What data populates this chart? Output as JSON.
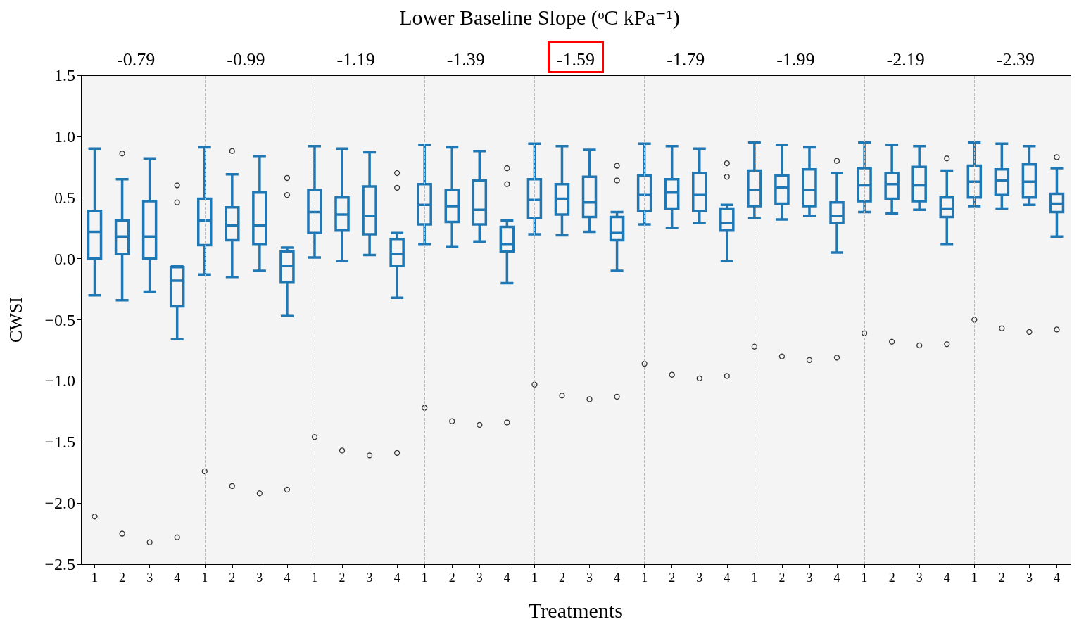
{
  "chart_data": {
    "type": "box",
    "title": "Lower Baseline Slope (ᵒC kPa⁻¹)",
    "xlabel": "Treatments",
    "ylabel": "CWSI",
    "categories": [
      "1",
      "2",
      "3",
      "4",
      "1",
      "2",
      "3",
      "4",
      "1",
      "2",
      "3",
      "4",
      "1",
      "2",
      "3",
      "4",
      "1",
      "2",
      "3",
      "4",
      "1",
      "2",
      "3",
      "4",
      "1",
      "2",
      "3",
      "4",
      "1",
      "2",
      "3",
      "4",
      "1",
      "2",
      "3",
      "4"
    ],
    "annotations": [
      "-0.79",
      "-0.99",
      "-1.19",
      "-1.39",
      "-1.59",
      "-1.79",
      "-1.99",
      "-2.19",
      "-2.39"
    ],
    "series": [
      {
        "color": "#1f77b4",
        "boxes": [
          {
            "low": -0.3,
            "q1": 0.0,
            "median": 0.22,
            "q3": 0.39,
            "high": 0.9,
            "outliers": [
              -2.11
            ]
          },
          {
            "low": -0.34,
            "q1": 0.04,
            "median": 0.18,
            "q3": 0.31,
            "high": 0.65,
            "outliers": [
              0.86,
              -2.25
            ]
          },
          {
            "low": -0.27,
            "q1": 0.0,
            "median": 0.18,
            "q3": 0.47,
            "high": 0.82,
            "outliers": [
              -2.32
            ]
          },
          {
            "low": -0.66,
            "q1": -0.39,
            "median": -0.18,
            "q3": -0.07,
            "high": -0.06,
            "outliers": [
              0.6,
              0.46,
              -2.28
            ]
          },
          {
            "low": -0.13,
            "q1": 0.11,
            "median": 0.31,
            "q3": 0.49,
            "high": 0.91,
            "outliers": [
              -1.74
            ]
          },
          {
            "low": -0.15,
            "q1": 0.15,
            "median": 0.27,
            "q3": 0.42,
            "high": 0.69,
            "outliers": [
              0.88,
              -1.86
            ]
          },
          {
            "low": -0.1,
            "q1": 0.12,
            "median": 0.27,
            "q3": 0.54,
            "high": 0.84,
            "outliers": [
              -1.92
            ]
          },
          {
            "low": -0.47,
            "q1": -0.19,
            "median": -0.06,
            "q3": 0.06,
            "high": 0.09,
            "outliers": [
              0.66,
              0.52,
              -1.89
            ]
          },
          {
            "low": 0.01,
            "q1": 0.21,
            "median": 0.38,
            "q3": 0.56,
            "high": 0.92,
            "outliers": [
              -1.46
            ]
          },
          {
            "low": -0.02,
            "q1": 0.23,
            "median": 0.36,
            "q3": 0.5,
            "high": 0.9,
            "outliers": [
              -1.57
            ]
          },
          {
            "low": 0.03,
            "q1": 0.2,
            "median": 0.35,
            "q3": 0.59,
            "high": 0.87,
            "outliers": [
              -1.61
            ]
          },
          {
            "low": -0.32,
            "q1": -0.06,
            "median": 0.04,
            "q3": 0.16,
            "high": 0.21,
            "outliers": [
              0.7,
              0.58,
              -1.59
            ]
          },
          {
            "low": 0.12,
            "q1": 0.28,
            "median": 0.44,
            "q3": 0.61,
            "high": 0.93,
            "outliers": [
              -1.22
            ]
          },
          {
            "low": 0.1,
            "q1": 0.3,
            "median": 0.43,
            "q3": 0.56,
            "high": 0.91,
            "outliers": [
              -1.33
            ]
          },
          {
            "low": 0.14,
            "q1": 0.28,
            "median": 0.4,
            "q3": 0.64,
            "high": 0.88,
            "outliers": [
              -1.36
            ]
          },
          {
            "low": -0.2,
            "q1": 0.06,
            "median": 0.12,
            "q3": 0.26,
            "high": 0.31,
            "outliers": [
              0.74,
              0.61,
              -1.34
            ]
          },
          {
            "low": 0.2,
            "q1": 0.33,
            "median": 0.48,
            "q3": 0.65,
            "high": 0.94,
            "outliers": [
              -1.03
            ]
          },
          {
            "low": 0.19,
            "q1": 0.36,
            "median": 0.49,
            "q3": 0.61,
            "high": 0.92,
            "outliers": [
              -1.12
            ]
          },
          {
            "low": 0.22,
            "q1": 0.34,
            "median": 0.46,
            "q3": 0.67,
            "high": 0.89,
            "outliers": [
              -1.15
            ]
          },
          {
            "low": -0.1,
            "q1": 0.15,
            "median": 0.21,
            "q3": 0.34,
            "high": 0.38,
            "outliers": [
              0.76,
              0.64,
              -1.13
            ]
          },
          {
            "low": 0.28,
            "q1": 0.39,
            "median": 0.52,
            "q3": 0.68,
            "high": 0.94,
            "outliers": [
              -0.86
            ]
          },
          {
            "low": 0.25,
            "q1": 0.41,
            "median": 0.54,
            "q3": 0.65,
            "high": 0.92,
            "outliers": [
              -0.95
            ]
          },
          {
            "low": 0.29,
            "q1": 0.39,
            "median": 0.52,
            "q3": 0.7,
            "high": 0.9,
            "outliers": [
              -0.98
            ]
          },
          {
            "low": -0.02,
            "q1": 0.23,
            "median": 0.29,
            "q3": 0.41,
            "high": 0.44,
            "outliers": [
              0.78,
              0.67,
              -0.96
            ]
          },
          {
            "low": 0.33,
            "q1": 0.43,
            "median": 0.56,
            "q3": 0.72,
            "high": 0.95,
            "outliers": [
              -0.72
            ]
          },
          {
            "low": 0.32,
            "q1": 0.45,
            "median": 0.58,
            "q3": 0.68,
            "high": 0.93,
            "outliers": [
              -0.8
            ]
          },
          {
            "low": 0.35,
            "q1": 0.43,
            "median": 0.56,
            "q3": 0.73,
            "high": 0.91,
            "outliers": [
              -0.83
            ]
          },
          {
            "low": 0.05,
            "q1": 0.29,
            "median": 0.35,
            "q3": 0.46,
            "high": 0.7,
            "outliers": [
              0.8,
              -0.81
            ]
          },
          {
            "low": 0.38,
            "q1": 0.47,
            "median": 0.6,
            "q3": 0.74,
            "high": 0.95,
            "outliers": [
              -0.61
            ]
          },
          {
            "low": 0.37,
            "q1": 0.49,
            "median": 0.61,
            "q3": 0.7,
            "high": 0.93,
            "outliers": [
              -0.68
            ]
          },
          {
            "low": 0.4,
            "q1": 0.47,
            "median": 0.6,
            "q3": 0.75,
            "high": 0.92,
            "outliers": [
              -0.71
            ]
          },
          {
            "low": 0.12,
            "q1": 0.34,
            "median": 0.41,
            "q3": 0.5,
            "high": 0.72,
            "outliers": [
              0.82,
              -0.7
            ]
          },
          {
            "low": 0.43,
            "q1": 0.5,
            "median": 0.63,
            "q3": 0.76,
            "high": 0.95,
            "outliers": [
              -0.5
            ]
          },
          {
            "low": 0.41,
            "q1": 0.52,
            "median": 0.64,
            "q3": 0.73,
            "high": 0.94,
            "outliers": [
              -0.57
            ]
          },
          {
            "low": 0.44,
            "q1": 0.5,
            "median": 0.63,
            "q3": 0.77,
            "high": 0.92,
            "outliers": [
              -0.6
            ]
          },
          {
            "low": 0.18,
            "q1": 0.38,
            "median": 0.45,
            "q3": 0.53,
            "high": 0.74,
            "outliers": [
              0.83,
              -0.58
            ]
          }
        ]
      }
    ],
    "ylim": [
      -2.5,
      1.5
    ],
    "yticks": [
      {
        "value": -2.5,
        "label": "−2.5"
      },
      {
        "value": -2.0,
        "label": "−2.0"
      },
      {
        "value": -1.5,
        "label": "−1.5"
      },
      {
        "value": -1.0,
        "label": "−1.0"
      },
      {
        "value": -0.5,
        "label": "−0.5"
      },
      {
        "value": 0,
        "label": "0.0"
      },
      {
        "value": 0.5,
        "label": "0.5"
      },
      {
        "value": 1.0,
        "label": "1.0"
      },
      {
        "value": 1.5,
        "label": "1.5"
      }
    ],
    "grid": "x"
  }
}
